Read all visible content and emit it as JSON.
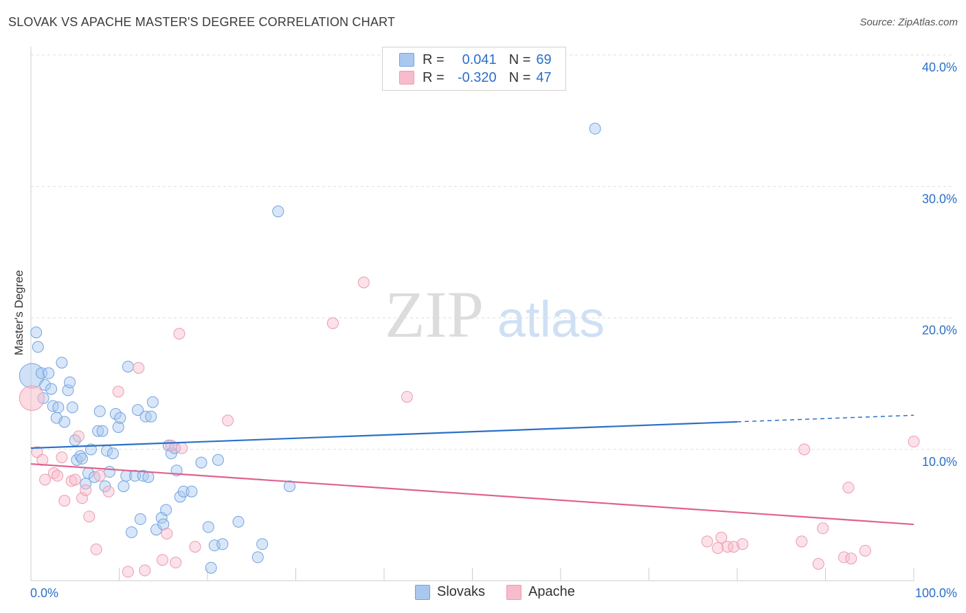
{
  "header": {
    "title": "SLOVAK VS APACHE MASTER'S DEGREE CORRELATION CHART",
    "source": "Source: ZipAtlas.com"
  },
  "watermark": {
    "zip": "ZIP",
    "atlas": "atlas"
  },
  "legend": {
    "rows": [
      {
        "r_label": "R =",
        "r_value": "0.041",
        "n_label": "N =",
        "n_value": "69",
        "color": "#a9c8f0"
      },
      {
        "r_label": "R =",
        "r_value": "-0.320",
        "n_label": "N =",
        "n_value": "47",
        "color": "#f7bccb"
      }
    ]
  },
  "bottom_legend": [
    {
      "label": "Slovaks",
      "color": "#a9c8f0"
    },
    {
      "label": "Apache",
      "color": "#f7bccb"
    }
  ],
  "chart_data": {
    "type": "scatter",
    "title": "SLOVAK VS APACHE MASTER'S DEGREE CORRELATION CHART",
    "ylabel": "Master's Degree",
    "xlim": [
      0,
      100
    ],
    "ylim": [
      0,
      40
    ],
    "x_tick_labels": [
      "0.0%",
      "100.0%"
    ],
    "y_tick_labels": [
      "10.0%",
      "20.0%",
      "30.0%",
      "40.0%"
    ],
    "y_ticks": [
      10,
      20,
      30,
      40
    ],
    "grid": true,
    "legend_placement": "top-center",
    "series": [
      {
        "name": "Slovaks",
        "color": "#6fa3e0",
        "fill": "#a9c8f0",
        "trend": {
          "x": [
            0,
            80
          ],
          "y": [
            10.1,
            12.1
          ],
          "dashed_to": [
            100,
            12.6
          ],
          "color": "#2a6fc8"
        },
        "points": [
          [
            0.1,
            15.6
          ],
          [
            0.6,
            18.9
          ],
          [
            0.8,
            17.8
          ],
          [
            1.2,
            15.8
          ],
          [
            1.4,
            13.9
          ],
          [
            1.6,
            14.9
          ],
          [
            2,
            15.8
          ],
          [
            2.3,
            14.6
          ],
          [
            2.5,
            13.3
          ],
          [
            2.9,
            12.4
          ],
          [
            3.1,
            13.2
          ],
          [
            3.5,
            16.6
          ],
          [
            3.8,
            12.1
          ],
          [
            4.2,
            14.5
          ],
          [
            4.4,
            15.1
          ],
          [
            4.7,
            13.2
          ],
          [
            5,
            10.7
          ],
          [
            5.2,
            9.2
          ],
          [
            5.6,
            9.5
          ],
          [
            5.8,
            9.3
          ],
          [
            6.2,
            7.4
          ],
          [
            6.5,
            8.2
          ],
          [
            6.8,
            10.0
          ],
          [
            7.2,
            7.9
          ],
          [
            7.6,
            11.4
          ],
          [
            7.8,
            12.9
          ],
          [
            8.1,
            11.4
          ],
          [
            8.4,
            7.2
          ],
          [
            8.6,
            9.9
          ],
          [
            8.9,
            8.3
          ],
          [
            9.3,
            9.7
          ],
          [
            9.6,
            12.7
          ],
          [
            9.9,
            11.7
          ],
          [
            10.1,
            12.4
          ],
          [
            10.5,
            7.2
          ],
          [
            10.8,
            8.0
          ],
          [
            11.0,
            16.3
          ],
          [
            11.4,
            3.7
          ],
          [
            11.8,
            8.0
          ],
          [
            12.1,
            13.0
          ],
          [
            12.4,
            4.7
          ],
          [
            12.7,
            8.0
          ],
          [
            13.0,
            12.5
          ],
          [
            13.3,
            7.9
          ],
          [
            13.6,
            12.5
          ],
          [
            13.8,
            13.6
          ],
          [
            14.2,
            3.9
          ],
          [
            14.8,
            4.8
          ],
          [
            15.0,
            4.3
          ],
          [
            15.3,
            5.4
          ],
          [
            15.6,
            10.3
          ],
          [
            15.9,
            9.7
          ],
          [
            16.3,
            10.1
          ],
          [
            16.5,
            8.4
          ],
          [
            16.9,
            6.4
          ],
          [
            17.3,
            6.8
          ],
          [
            18.2,
            6.8
          ],
          [
            19.3,
            9.0
          ],
          [
            20.1,
            4.1
          ],
          [
            20.4,
            1.0
          ],
          [
            20.8,
            2.7
          ],
          [
            21.2,
            9.2
          ],
          [
            21.7,
            2.8
          ],
          [
            23.5,
            4.5
          ],
          [
            25.7,
            1.8
          ],
          [
            26.2,
            2.8
          ],
          [
            28.0,
            28.1
          ],
          [
            29.3,
            7.2
          ],
          [
            63.9,
            34.4
          ]
        ]
      },
      {
        "name": "Apache",
        "color": "#ee99b0",
        "fill": "#f7bccb",
        "trend": {
          "x": [
            0,
            100
          ],
          "y": [
            8.9,
            4.3
          ],
          "color": "#e06090"
        },
        "points": [
          [
            0.1,
            13.9
          ],
          [
            0.7,
            9.8
          ],
          [
            1.3,
            9.2
          ],
          [
            1.6,
            7.7
          ],
          [
            2.6,
            8.2
          ],
          [
            3.0,
            8.0
          ],
          [
            3.5,
            9.4
          ],
          [
            3.8,
            6.1
          ],
          [
            4.6,
            7.6
          ],
          [
            5.0,
            7.7
          ],
          [
            5.4,
            11.0
          ],
          [
            5.8,
            6.3
          ],
          [
            6.2,
            6.9
          ],
          [
            6.6,
            4.9
          ],
          [
            7.4,
            2.4
          ],
          [
            7.8,
            8.0
          ],
          [
            8.8,
            6.8
          ],
          [
            9.9,
            14.4
          ],
          [
            11.0,
            0.7
          ],
          [
            12.2,
            16.2
          ],
          [
            12.9,
            0.8
          ],
          [
            14.9,
            1.6
          ],
          [
            15.4,
            3.6
          ],
          [
            15.9,
            10.3
          ],
          [
            16.4,
            1.4
          ],
          [
            16.8,
            18.8
          ],
          [
            17.1,
            10.1
          ],
          [
            18.6,
            2.6
          ],
          [
            22.3,
            12.2
          ],
          [
            34.2,
            19.6
          ],
          [
            37.7,
            22.7
          ],
          [
            42.6,
            14.0
          ],
          [
            76.6,
            3.0
          ],
          [
            77.8,
            2.5
          ],
          [
            78.2,
            3.3
          ],
          [
            78.9,
            2.6
          ],
          [
            79.6,
            2.6
          ],
          [
            80.6,
            2.8
          ],
          [
            87.3,
            3.0
          ],
          [
            87.6,
            10.0
          ],
          [
            89.2,
            1.3
          ],
          [
            89.7,
            4.0
          ],
          [
            92.1,
            1.8
          ],
          [
            92.6,
            7.1
          ],
          [
            92.9,
            1.7
          ],
          [
            94.5,
            2.3
          ],
          [
            100.0,
            10.6
          ]
        ]
      }
    ]
  }
}
